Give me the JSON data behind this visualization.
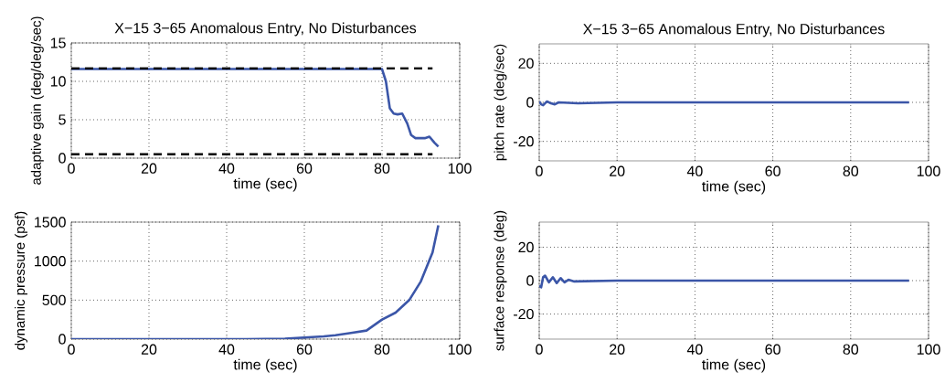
{
  "chart_data": [
    {
      "type": "line",
      "title": "X−15 3−65 Anomalous Entry, No Disturbances",
      "xlabel": "time (sec)",
      "ylabel": "adaptive gain (deg/deg/sec)",
      "xlim": [
        0,
        100
      ],
      "ylim": [
        0,
        15
      ],
      "xticks": [
        0,
        20,
        40,
        60,
        80,
        100
      ],
      "yticks": [
        0,
        5,
        10,
        15
      ],
      "grid": true,
      "marker": "none",
      "series": [
        {
          "color": "#3b56a8",
          "x": [
            0,
            20,
            40,
            60,
            80,
            81,
            82,
            83,
            84,
            85.2,
            86.5,
            87.5,
            88.6,
            90,
            91,
            92.2,
            93.5,
            94.5
          ],
          "values": [
            11.6,
            11.6,
            11.6,
            11.6,
            11.6,
            10,
            6.5,
            5.8,
            5.7,
            5.8,
            4.5,
            3.0,
            2.6,
            2.6,
            2.6,
            2.8,
            2.0,
            1.5
          ]
        },
        {
          "color": "#000000",
          "line_style": "dashed",
          "x": [
            0,
            93
          ],
          "values": [
            11.7,
            11.7
          ]
        },
        {
          "color": "#000000",
          "line_style": "dashed",
          "x": [
            0,
            93
          ],
          "values": [
            0.5,
            0.5
          ]
        }
      ]
    },
    {
      "type": "line",
      "xlabel": "time (sec)",
      "ylabel": "dynamic pressure (psf)",
      "xlim": [
        0,
        100
      ],
      "ylim": [
        0,
        1500
      ],
      "xticks": [
        0,
        20,
        40,
        60,
        80,
        100
      ],
      "yticks": [
        0,
        500,
        1000,
        1500
      ],
      "grid": true,
      "marker": "none",
      "series": [
        {
          "color": "#3b56a8",
          "x": [
            0,
            45,
            55,
            60,
            65,
            68,
            72,
            76,
            80,
            83.5,
            87,
            90,
            93,
            94.5
          ],
          "values": [
            0,
            0,
            5,
            20,
            35,
            50,
            80,
            110,
            250,
            340,
            500,
            740,
            1110,
            1460
          ]
        }
      ]
    },
    {
      "type": "line",
      "title": "X−15 3−65 Anomalous Entry, No Disturbances",
      "xlabel": "time (sec)",
      "ylabel": "pitch rate (deg/sec)",
      "xlim": [
        0,
        100
      ],
      "ylim": [
        -30,
        30
      ],
      "xticks": [
        0,
        20,
        40,
        60,
        80,
        100
      ],
      "yticks": [
        -20,
        0,
        20
      ],
      "grid": true,
      "marker": "none",
      "series": [
        {
          "color": "#3b56a8",
          "x": [
            0,
            0.5,
            1,
            2,
            3,
            4,
            5,
            10,
            20,
            40,
            60,
            80,
            95
          ],
          "values": [
            0.5,
            -1,
            -1.5,
            0.5,
            -0.5,
            -1,
            0,
            -0.5,
            0,
            0,
            0,
            0,
            0
          ]
        }
      ]
    },
    {
      "type": "line",
      "xlabel": "time (sec)",
      "ylabel": "surface response (deg)",
      "xlim": [
        0,
        100
      ],
      "ylim": [
        -35,
        35
      ],
      "xticks": [
        0,
        20,
        40,
        60,
        80,
        100
      ],
      "yticks": [
        -20,
        0,
        20
      ],
      "grid": true,
      "marker": "none",
      "series": [
        {
          "color": "#3b56a8",
          "x": [
            0,
            0.5,
            1,
            1.5,
            2.5,
            3.5,
            4.5,
            5.5,
            6.5,
            7.5,
            9,
            20,
            40,
            60,
            80,
            95
          ],
          "values": [
            -3,
            -4,
            2,
            3,
            -1,
            2,
            -1.5,
            1.5,
            -1,
            0.5,
            -0.5,
            0,
            0,
            0,
            0,
            0
          ]
        }
      ]
    }
  ]
}
